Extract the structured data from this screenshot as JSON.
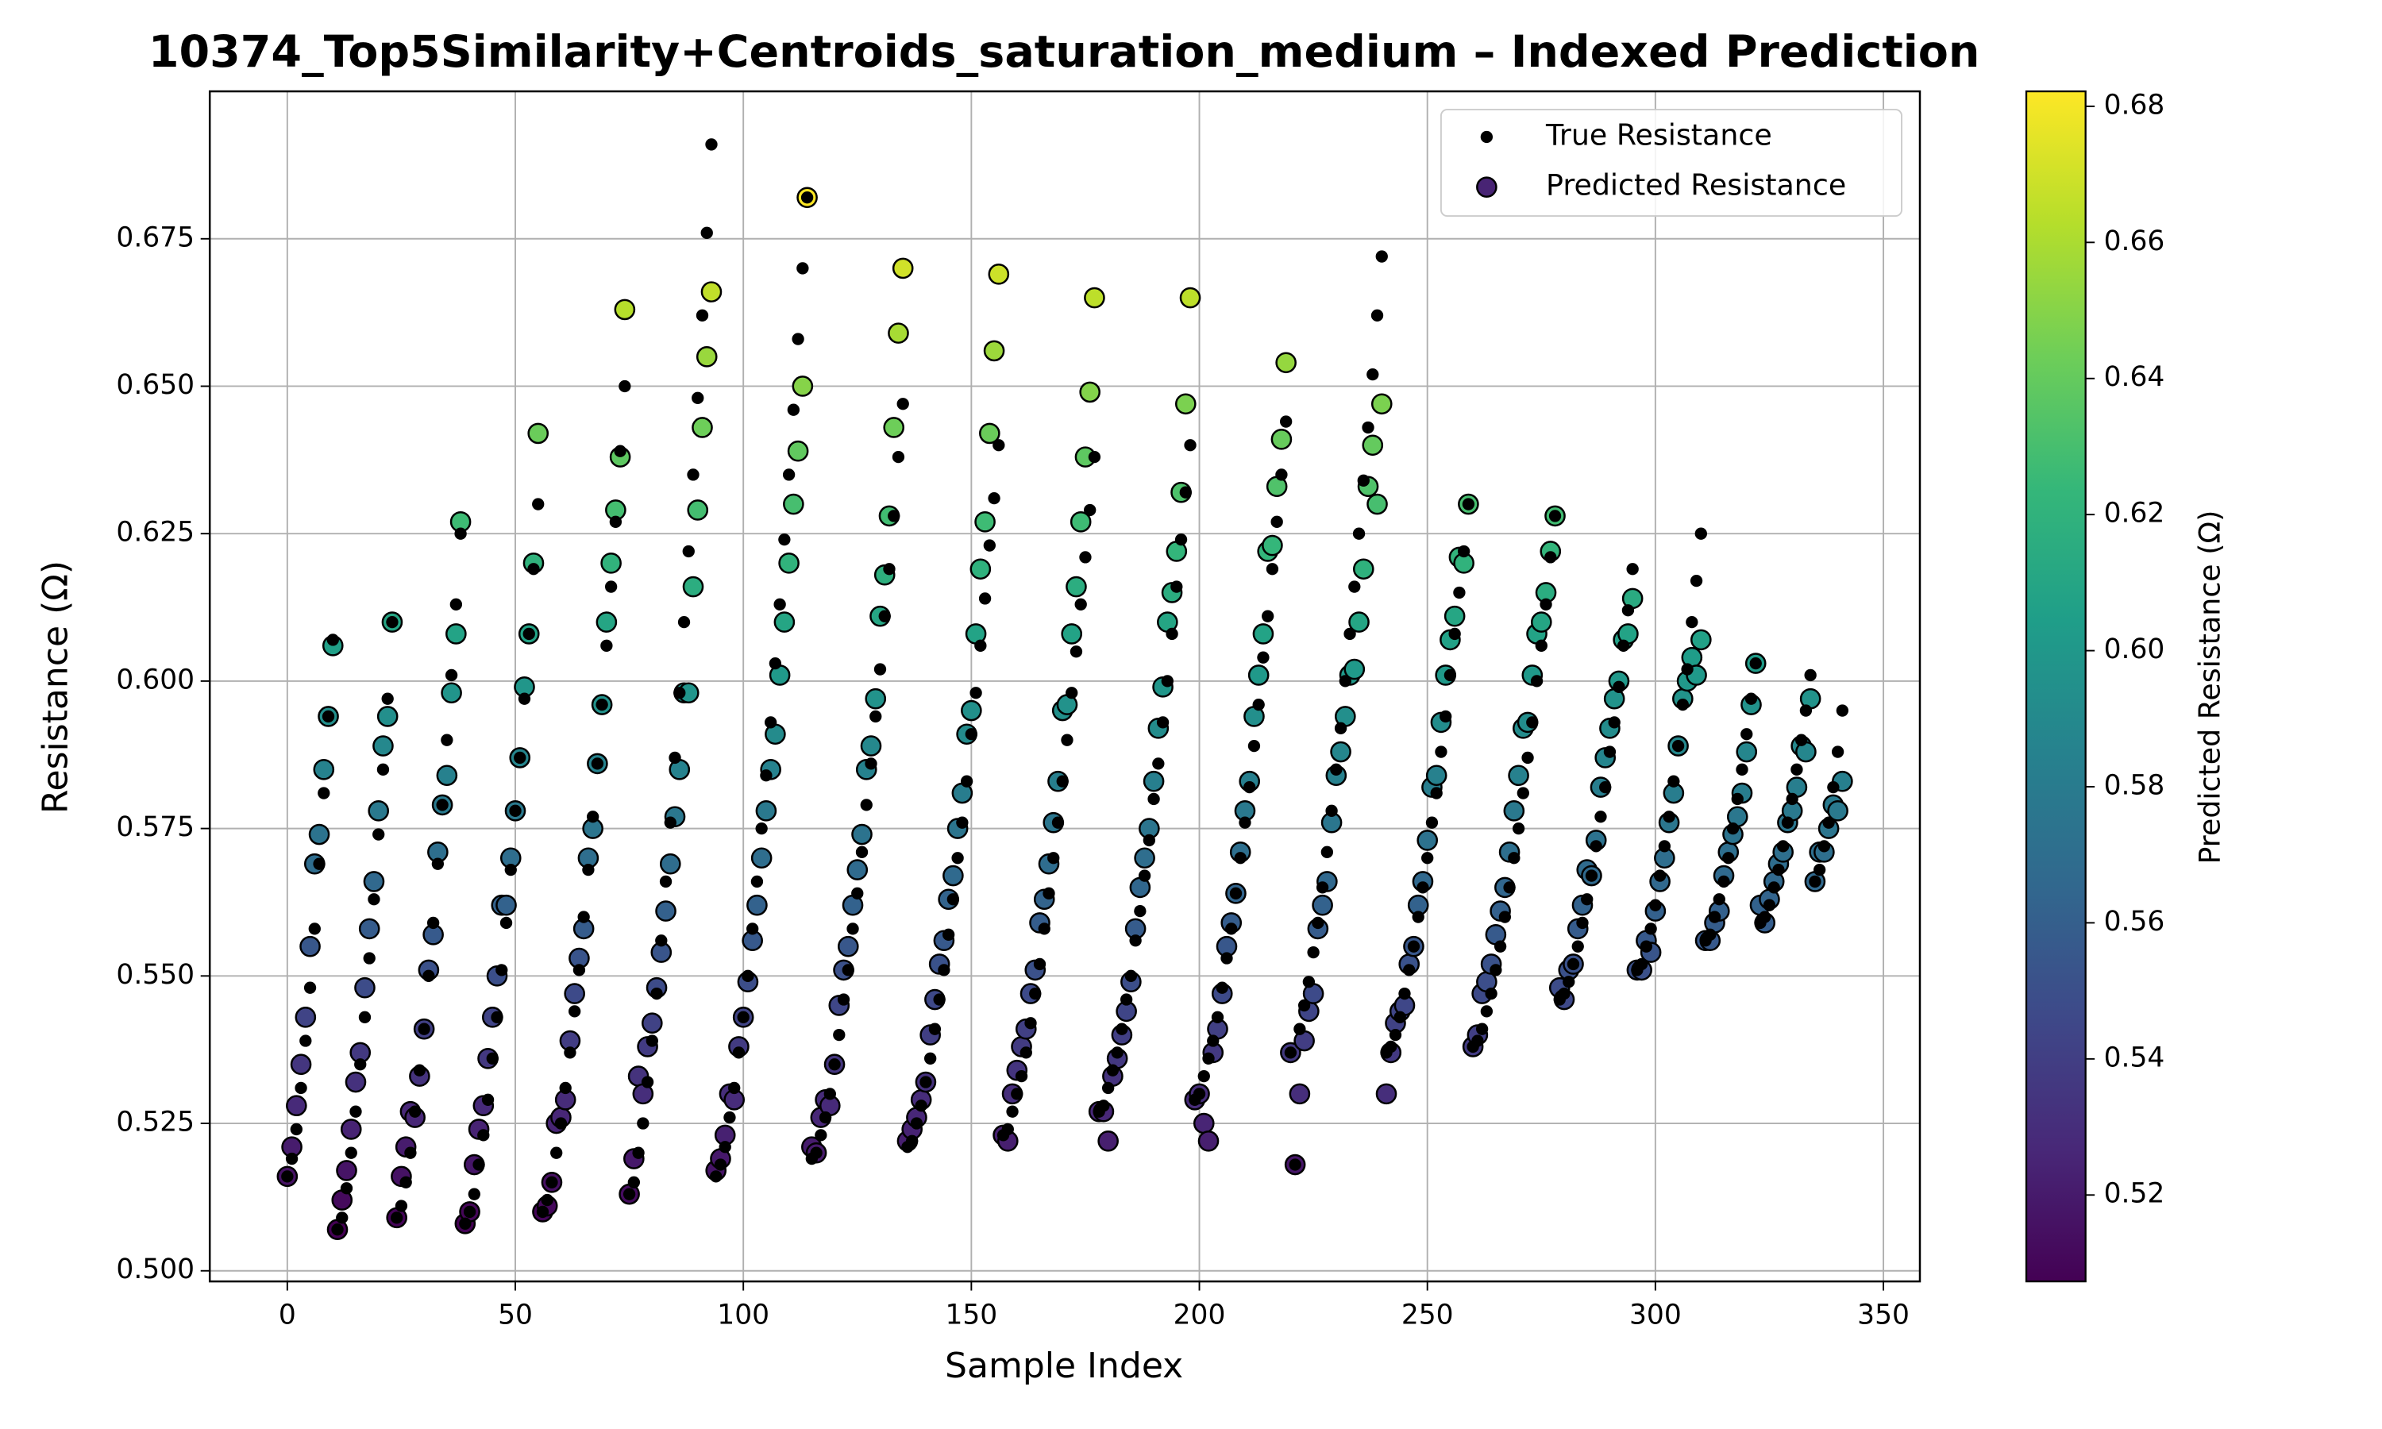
{
  "chart_data": {
    "type": "scatter",
    "title": "10374_Top5Similarity+Centroids_saturation_medium – Indexed Prediction",
    "x_label": "Sample Index",
    "y_label": "Resistance (Ω)",
    "grid": true,
    "legend": "upper right",
    "xlim": [
      -17,
      358
    ],
    "ylim": [
      0.4982,
      0.7
    ],
    "xticks": [
      0,
      50,
      100,
      150,
      200,
      250,
      300,
      350
    ],
    "yticks": [
      {
        "value": 0.5,
        "label": "0.500"
      },
      0.525,
      {
        "value": 0.55,
        "label": "0.550"
      },
      0.575,
      {
        "value": 0.6,
        "label": "0.600"
      },
      0.625,
      {
        "value": 0.65,
        "label": "0.650"
      },
      0.675
    ],
    "colorbar": {
      "label": "Predicted Resistance (Ω)",
      "colormap": "viridis",
      "lim": [
        0.5073,
        0.6822
      ],
      "ticks": [
        0.52,
        0.54,
        0.56,
        0.58,
        {
          "value": 0.6,
          "label": "0.60"
        },
        0.62,
        0.64,
        0.66,
        0.68
      ]
    },
    "x": [
      0,
      1,
      2,
      3,
      4,
      5,
      6,
      7,
      8,
      9,
      10,
      11,
      12,
      13,
      14,
      15,
      16,
      17,
      18,
      19,
      20,
      21,
      22,
      23,
      24,
      25,
      26,
      27,
      28,
      29,
      30,
      31,
      32,
      33,
      34,
      35,
      36,
      37,
      38,
      39,
      40,
      41,
      42,
      43,
      44,
      45,
      46,
      47,
      48,
      49,
      50,
      51,
      52,
      53,
      54,
      55,
      56,
      57,
      58,
      59,
      60,
      61,
      62,
      63,
      64,
      65,
      66,
      67,
      68,
      69,
      70,
      71,
      72,
      73,
      74,
      75,
      76,
      77,
      78,
      79,
      80,
      81,
      82,
      83,
      84,
      85,
      86,
      87,
      88,
      89,
      90,
      91,
      92,
      93,
      94,
      95,
      96,
      97,
      98,
      99,
      100,
      101,
      102,
      103,
      104,
      105,
      106,
      107,
      108,
      109,
      110,
      111,
      112,
      113,
      114,
      115,
      116,
      117,
      118,
      119,
      120,
      121,
      122,
      123,
      124,
      125,
      126,
      127,
      128,
      129,
      130,
      131,
      132,
      133,
      134,
      135,
      136,
      137,
      138,
      139,
      140,
      141,
      142,
      143,
      144,
      145,
      146,
      147,
      148,
      149,
      150,
      151,
      152,
      153,
      154,
      155,
      156,
      157,
      158,
      159,
      160,
      161,
      162,
      163,
      164,
      165,
      166,
      167,
      168,
      169,
      170,
      171,
      172,
      173,
      174,
      175,
      176,
      177,
      178,
      179,
      180,
      181,
      182,
      183,
      184,
      185,
      186,
      187,
      188,
      189,
      190,
      191,
      192,
      193,
      194,
      195,
      196,
      197,
      198,
      199,
      200,
      201,
      202,
      203,
      204,
      205,
      206,
      207,
      208,
      209,
      210,
      211,
      212,
      213,
      214,
      215,
      216,
      217,
      218,
      219,
      220,
      221,
      222,
      223,
      224,
      225,
      226,
      227,
      228,
      229,
      230,
      231,
      232,
      233,
      234,
      235,
      236,
      237,
      238,
      239,
      240,
      241,
      242,
      243,
      244,
      245,
      246,
      247,
      248,
      249,
      250,
      251,
      252,
      253,
      254,
      255,
      256,
      257,
      258,
      259,
      260,
      261,
      262,
      263,
      264,
      265,
      266,
      267,
      268,
      269,
      270,
      271,
      272,
      273,
      274,
      275,
      276,
      277,
      278,
      279,
      280,
      281,
      282,
      283,
      284,
      285,
      286,
      287,
      288,
      289,
      290,
      291,
      292,
      293,
      294,
      295,
      296,
      297,
      298,
      299,
      300,
      301,
      302,
      303,
      304,
      305,
      306,
      307,
      308,
      309,
      310,
      311,
      312,
      313,
      314,
      315,
      316,
      317,
      318,
      319,
      320,
      321,
      322,
      323,
      324,
      325,
      326,
      327,
      328,
      329,
      330,
      331,
      332,
      333,
      334,
      335,
      336,
      337,
      338,
      339,
      340,
      341
    ],
    "series": [
      {
        "name": "True Resistance",
        "color": "#000000",
        "values": [
          0.516,
          0.519,
          0.524,
          0.531,
          0.539,
          0.548,
          0.558,
          0.569,
          0.581,
          0.594,
          0.607,
          0.507,
          0.509,
          0.514,
          0.52,
          0.527,
          0.535,
          0.543,
          0.553,
          0.563,
          0.574,
          0.585,
          0.597,
          0.61,
          0.509,
          0.511,
          0.515,
          0.52,
          0.527,
          0.534,
          0.541,
          0.55,
          0.559,
          0.569,
          0.579,
          0.59,
          0.601,
          0.613,
          0.625,
          0.508,
          0.51,
          0.513,
          0.518,
          0.523,
          0.529,
          0.536,
          0.543,
          0.551,
          0.559,
          0.568,
          0.578,
          0.587,
          0.597,
          0.608,
          0.619,
          0.63,
          0.51,
          0.512,
          0.515,
          0.52,
          0.525,
          0.531,
          0.537,
          0.544,
          0.551,
          0.56,
          0.568,
          0.577,
          0.586,
          0.596,
          0.606,
          0.616,
          0.627,
          0.639,
          0.65,
          0.513,
          0.515,
          0.52,
          0.525,
          0.532,
          0.539,
          0.547,
          0.556,
          0.566,
          0.576,
          0.587,
          0.598,
          0.61,
          0.622,
          0.635,
          0.648,
          0.662,
          0.676,
          0.691,
          0.516,
          0.518,
          0.521,
          0.526,
          0.531,
          0.537,
          0.543,
          0.55,
          0.558,
          0.566,
          0.575,
          0.584,
          0.593,
          0.603,
          0.613,
          0.624,
          0.635,
          0.646,
          0.658,
          0.67,
          0.682,
          0.519,
          0.52,
          0.523,
          0.526,
          0.53,
          0.535,
          0.54,
          0.546,
          0.551,
          0.558,
          0.564,
          0.571,
          0.579,
          0.586,
          0.594,
          0.602,
          0.611,
          0.619,
          0.628,
          0.638,
          0.647,
          0.521,
          0.522,
          0.525,
          0.528,
          0.532,
          0.536,
          0.541,
          0.546,
          0.551,
          0.557,
          0.563,
          0.57,
          0.576,
          0.583,
          0.591,
          0.598,
          0.606,
          0.614,
          0.623,
          0.631,
          0.64,
          0.523,
          0.524,
          0.527,
          0.53,
          0.533,
          0.537,
          0.542,
          0.547,
          0.552,
          0.558,
          0.564,
          0.57,
          0.576,
          0.583,
          0.59,
          0.598,
          0.605,
          0.613,
          0.621,
          0.629,
          0.638,
          0.527,
          0.528,
          0.531,
          0.534,
          0.537,
          0.541,
          0.546,
          0.55,
          0.556,
          0.561,
          0.567,
          0.573,
          0.58,
          0.586,
          0.593,
          0.6,
          0.608,
          0.616,
          0.624,
          0.632,
          0.64,
          0.529,
          0.53,
          0.533,
          0.536,
          0.539,
          0.543,
          0.548,
          0.553,
          0.558,
          0.564,
          0.57,
          0.576,
          0.582,
          0.589,
          0.596,
          0.604,
          0.611,
          0.619,
          0.627,
          0.635,
          0.644,
          0.537,
          0.518,
          0.541,
          0.545,
          0.549,
          0.554,
          0.559,
          0.565,
          0.571,
          0.578,
          0.585,
          0.592,
          0.6,
          0.608,
          0.616,
          0.625,
          0.634,
          0.643,
          0.652,
          0.662,
          0.672,
          0.537,
          0.538,
          0.54,
          0.543,
          0.547,
          0.551,
          0.555,
          0.56,
          0.565,
          0.57,
          0.576,
          0.581,
          0.588,
          0.594,
          0.601,
          0.608,
          0.615,
          0.622,
          0.63,
          0.538,
          0.539,
          0.541,
          0.544,
          0.547,
          0.551,
          0.555,
          0.56,
          0.565,
          0.57,
          0.575,
          0.581,
          0.587,
          0.593,
          0.6,
          0.606,
          0.613,
          0.621,
          0.628,
          0.546,
          0.547,
          0.549,
          0.552,
          0.555,
          0.559,
          0.563,
          0.567,
          0.572,
          0.577,
          0.582,
          0.588,
          0.593,
          0.599,
          0.606,
          0.612,
          0.619,
          0.551,
          0.552,
          0.555,
          0.558,
          0.562,
          0.567,
          0.572,
          0.577,
          0.583,
          0.589,
          0.596,
          0.602,
          0.61,
          0.617,
          0.625,
          0.556,
          0.557,
          0.56,
          0.563,
          0.566,
          0.57,
          0.575,
          0.58,
          0.585,
          0.591,
          0.597,
          0.603,
          0.559,
          0.56,
          0.562,
          0.565,
          0.568,
          0.572,
          0.576,
          0.58,
          0.585,
          0.59,
          0.595,
          0.601,
          0.566,
          0.568,
          0.572,
          0.576,
          0.582,
          0.588,
          0.595
        ]
      },
      {
        "name": "Predicted Resistance",
        "color": "viridis",
        "values": [
          0.516,
          0.521,
          0.528,
          0.535,
          0.543,
          0.555,
          0.569,
          0.574,
          0.585,
          0.594,
          0.606,
          0.507,
          0.512,
          0.517,
          0.524,
          0.532,
          0.537,
          0.548,
          0.558,
          0.566,
          0.578,
          0.589,
          0.594,
          0.61,
          0.509,
          0.516,
          0.521,
          0.527,
          0.526,
          0.533,
          0.541,
          0.551,
          0.557,
          0.571,
          0.579,
          0.584,
          0.598,
          0.608,
          0.627,
          0.508,
          0.51,
          0.518,
          0.524,
          0.528,
          0.536,
          0.543,
          0.55,
          0.562,
          0.562,
          0.57,
          0.578,
          0.587,
          0.599,
          0.608,
          0.62,
          0.642,
          0.51,
          0.511,
          0.515,
          0.525,
          0.526,
          0.529,
          0.539,
          0.547,
          0.553,
          0.558,
          0.57,
          0.575,
          0.586,
          0.596,
          0.61,
          0.62,
          0.629,
          0.638,
          0.663,
          0.513,
          0.519,
          0.533,
          0.53,
          0.538,
          0.542,
          0.548,
          0.554,
          0.561,
          0.569,
          0.577,
          0.585,
          0.598,
          0.598,
          0.616,
          0.629,
          0.643,
          0.655,
          0.666,
          0.517,
          0.519,
          0.523,
          0.53,
          0.529,
          0.538,
          0.543,
          0.549,
          0.556,
          0.562,
          0.57,
          0.578,
          0.585,
          0.591,
          0.601,
          0.61,
          0.62,
          0.63,
          0.639,
          0.65,
          0.682,
          0.521,
          0.52,
          0.526,
          0.529,
          0.528,
          0.535,
          0.545,
          0.551,
          0.555,
          0.562,
          0.568,
          0.574,
          0.585,
          0.589,
          0.597,
          0.611,
          0.618,
          0.628,
          0.643,
          0.659,
          0.67,
          0.522,
          0.524,
          0.526,
          0.529,
          0.532,
          0.54,
          0.546,
          0.552,
          0.556,
          0.563,
          0.567,
          0.575,
          0.581,
          0.591,
          0.595,
          0.608,
          0.619,
          0.627,
          0.642,
          0.656,
          0.669,
          0.523,
          0.522,
          0.53,
          0.534,
          0.538,
          0.541,
          0.547,
          0.551,
          0.559,
          0.563,
          0.569,
          0.576,
          0.583,
          0.595,
          0.596,
          0.608,
          0.616,
          0.627,
          0.638,
          0.649,
          0.665,
          0.527,
          0.527,
          0.522,
          0.533,
          0.536,
          0.54,
          0.544,
          0.549,
          0.558,
          0.565,
          0.57,
          0.575,
          0.583,
          0.592,
          0.599,
          0.61,
          0.615,
          0.622,
          0.632,
          0.647,
          0.665,
          0.529,
          0.53,
          0.525,
          0.522,
          0.537,
          0.541,
          0.547,
          0.555,
          0.559,
          0.564,
          0.571,
          0.578,
          0.583,
          0.594,
          0.601,
          0.608,
          0.622,
          0.623,
          0.633,
          0.641,
          0.654,
          0.537,
          0.518,
          0.53,
          0.539,
          0.544,
          0.547,
          0.558,
          0.562,
          0.566,
          0.576,
          0.584,
          0.588,
          0.594,
          0.601,
          0.602,
          0.61,
          0.619,
          0.633,
          0.64,
          0.63,
          0.647,
          0.53,
          0.537,
          0.542,
          0.544,
          0.545,
          0.552,
          0.555,
          0.562,
          0.566,
          0.573,
          0.582,
          0.584,
          0.593,
          0.601,
          0.607,
          0.611,
          0.621,
          0.62,
          0.63,
          0.538,
          0.54,
          0.547,
          0.549,
          0.552,
          0.557,
          0.561,
          0.565,
          0.571,
          0.578,
          0.584,
          0.592,
          0.593,
          0.601,
          0.608,
          0.61,
          0.615,
          0.622,
          0.628,
          0.548,
          0.546,
          0.551,
          0.552,
          0.558,
          0.562,
          0.568,
          0.567,
          0.573,
          0.582,
          0.587,
          0.592,
          0.597,
          0.6,
          0.607,
          0.608,
          0.614,
          0.551,
          0.551,
          0.556,
          0.554,
          0.561,
          0.566,
          0.57,
          0.576,
          0.581,
          0.589,
          0.597,
          0.6,
          0.604,
          0.601,
          0.607,
          0.556,
          0.556,
          0.559,
          0.561,
          0.567,
          0.571,
          0.574,
          0.577,
          0.581,
          0.588,
          0.596,
          0.603,
          0.562,
          0.559,
          0.563,
          0.566,
          0.569,
          0.571,
          0.576,
          0.578,
          0.582,
          0.589,
          0.588,
          0.597,
          0.566,
          0.571,
          0.571,
          0.575,
          0.579,
          0.578,
          0.583
        ]
      }
    ]
  }
}
